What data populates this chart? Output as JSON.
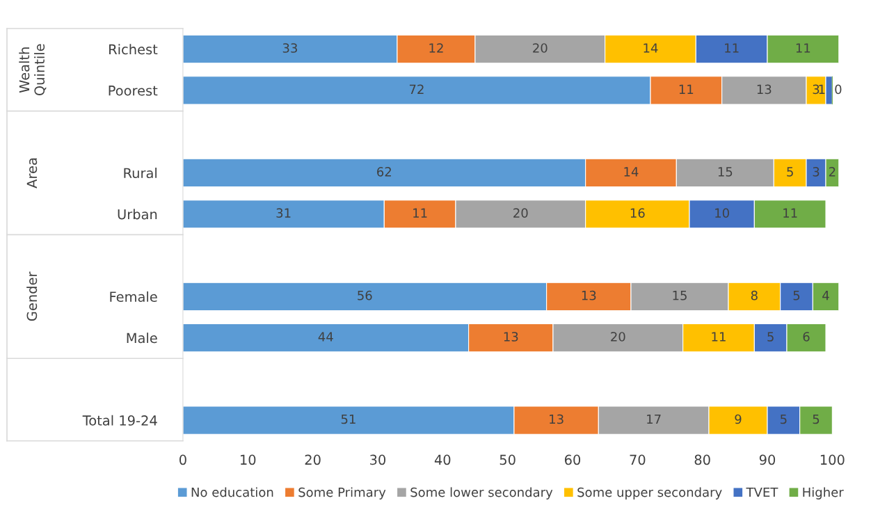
{
  "chart_data": {
    "type": "bar",
    "orientation": "horizontal",
    "stacked": true,
    "data_labels": true,
    "grid": false,
    "legend": "bottom",
    "categories": [
      "Richest",
      "Poorest",
      null,
      "Rural",
      "Urban",
      null,
      "Female",
      "Male",
      null,
      "Total 19-24"
    ],
    "annotations": [
      "Wealth Quintile",
      "Area",
      "Gender"
    ],
    "xlim": [
      0,
      101
    ],
    "xticks": [
      0,
      10,
      20,
      30,
      40,
      50,
      60,
      70,
      80,
      90,
      100
    ],
    "series": [
      {
        "name": "No education",
        "color": "#5b9bd5",
        "values": [
          33,
          72,
          null,
          62,
          31,
          null,
          56,
          44,
          null,
          51
        ]
      },
      {
        "name": "Some Primary",
        "color": "#ed7d31",
        "values": [
          12,
          11,
          null,
          14,
          11,
          null,
          13,
          13,
          null,
          13
        ]
      },
      {
        "name": "Some lower secondary",
        "color": "#a5a5a5",
        "values": [
          20,
          13,
          null,
          15,
          20,
          null,
          15,
          20,
          null,
          17
        ]
      },
      {
        "name": "Some upper secondary",
        "color": "#ffc000",
        "values": [
          14,
          3,
          null,
          5,
          16,
          null,
          8,
          11,
          null,
          9
        ]
      },
      {
        "name": "TVET",
        "color": "#4472c4",
        "values": [
          11,
          1,
          null,
          3,
          10,
          null,
          5,
          5,
          null,
          5
        ]
      },
      {
        "name": "Higher",
        "color": "#70ad47",
        "values": [
          11,
          0,
          null,
          2,
          11,
          null,
          4,
          6,
          null,
          5
        ]
      }
    ]
  }
}
